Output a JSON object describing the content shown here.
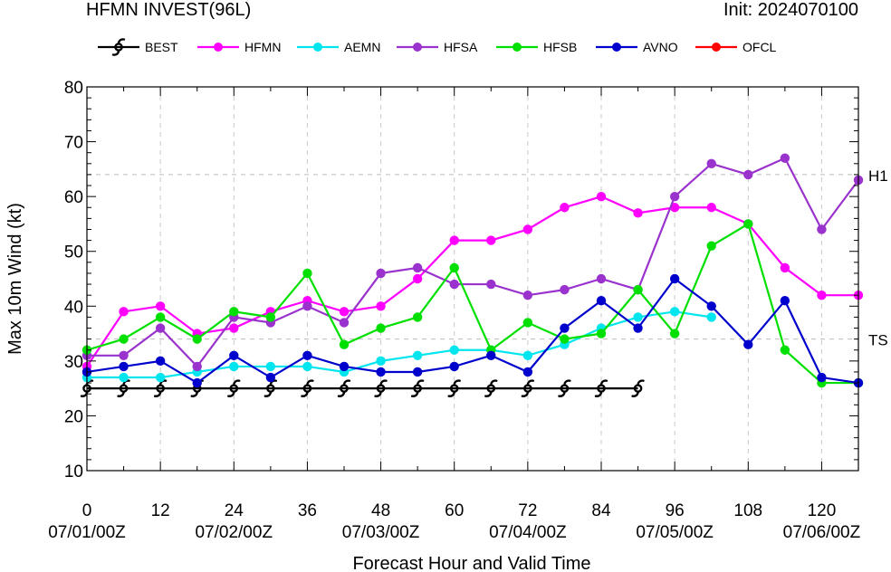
{
  "header": {
    "title": "HFMN INVEST(96L)",
    "init": "Init: 2024070100"
  },
  "chart_data": {
    "type": "line",
    "xlabel": "Forecast Hour and Valid Time",
    "ylabel": "Max 10m Wind (kt)",
    "xlim": [
      0,
      126
    ],
    "ylim": [
      10,
      80
    ],
    "grid": true,
    "legend": "top",
    "x_ticks": [
      0,
      12,
      24,
      36,
      48,
      60,
      72,
      84,
      96,
      108,
      120
    ],
    "y_ticks": [
      10,
      20,
      30,
      40,
      50,
      60,
      70,
      80
    ],
    "valid_time_labels": [
      {
        "x": 0,
        "label": "07/01/00Z"
      },
      {
        "x": 24,
        "label": "07/02/00Z"
      },
      {
        "x": 48,
        "label": "07/03/00Z"
      },
      {
        "x": 72,
        "label": "07/04/00Z"
      },
      {
        "x": 96,
        "label": "07/05/00Z"
      },
      {
        "x": 120,
        "label": "07/06/00Z"
      }
    ],
    "thresholds": [
      {
        "label": "H1",
        "value": 64
      },
      {
        "label": "TS",
        "value": 34
      }
    ],
    "series": [
      {
        "name": "BEST",
        "color": "#000000",
        "marker": "hurricane-symbol",
        "x": [
          0,
          6,
          12,
          18,
          24,
          30,
          36,
          42,
          48,
          54,
          60,
          66,
          72,
          78,
          84,
          90
        ],
        "y": [
          25,
          25,
          25,
          25,
          25,
          25,
          25,
          25,
          25,
          25,
          25,
          25,
          25,
          25,
          25,
          25
        ]
      },
      {
        "name": "HFMN",
        "color": "#ff00ff",
        "marker": "circle",
        "x": [
          0,
          6,
          12,
          18,
          24,
          30,
          36,
          42,
          48,
          54,
          60,
          66,
          72,
          78,
          84,
          90,
          96,
          102,
          108,
          114,
          120,
          126
        ],
        "y": [
          29,
          39,
          40,
          35,
          36,
          39,
          41,
          39,
          40,
          45,
          52,
          52,
          54,
          58,
          60,
          57,
          58,
          58,
          55,
          47,
          42,
          42
        ]
      },
      {
        "name": "AEMN",
        "color": "#00e5ee",
        "marker": "circle",
        "x": [
          0,
          6,
          12,
          18,
          24,
          30,
          36,
          42,
          48,
          54,
          60,
          66,
          72,
          78,
          84,
          90,
          96,
          102
        ],
        "y": [
          27,
          27,
          27,
          28,
          29,
          29,
          29,
          28,
          30,
          31,
          32,
          32,
          31,
          33,
          36,
          38,
          39,
          38
        ]
      },
      {
        "name": "HFSA",
        "color": "#9a32cd",
        "marker": "circle",
        "x": [
          0,
          6,
          12,
          18,
          24,
          30,
          36,
          42,
          48,
          54,
          60,
          66,
          72,
          78,
          84,
          90,
          96,
          102,
          108,
          114,
          120,
          126
        ],
        "y": [
          31,
          31,
          36,
          29,
          38,
          37,
          40,
          37,
          46,
          47,
          44,
          44,
          42,
          43,
          45,
          43,
          60,
          66,
          64,
          67,
          54,
          63
        ]
      },
      {
        "name": "HFSB",
        "color": "#00e000",
        "marker": "circle",
        "x": [
          0,
          6,
          12,
          18,
          24,
          30,
          36,
          42,
          48,
          54,
          60,
          66,
          72,
          78,
          84,
          90,
          96,
          102,
          108,
          114,
          120,
          126
        ],
        "y": [
          32,
          34,
          38,
          34,
          39,
          38,
          46,
          33,
          36,
          38,
          47,
          32,
          37,
          34,
          35,
          43,
          35,
          51,
          55,
          32,
          26,
          26
        ]
      },
      {
        "name": "AVNO",
        "color": "#0000cd",
        "marker": "circle",
        "x": [
          0,
          6,
          12,
          18,
          24,
          30,
          36,
          42,
          48,
          54,
          60,
          66,
          72,
          78,
          84,
          90,
          96,
          102,
          108,
          114,
          120,
          126
        ],
        "y": [
          28,
          29,
          30,
          26,
          31,
          27,
          31,
          29,
          28,
          28,
          29,
          31,
          28,
          36,
          41,
          36,
          45,
          40,
          33,
          41,
          27,
          26
        ]
      },
      {
        "name": "OFCL",
        "color": "#ff0000",
        "marker": "circle",
        "x": [],
        "y": []
      }
    ]
  }
}
